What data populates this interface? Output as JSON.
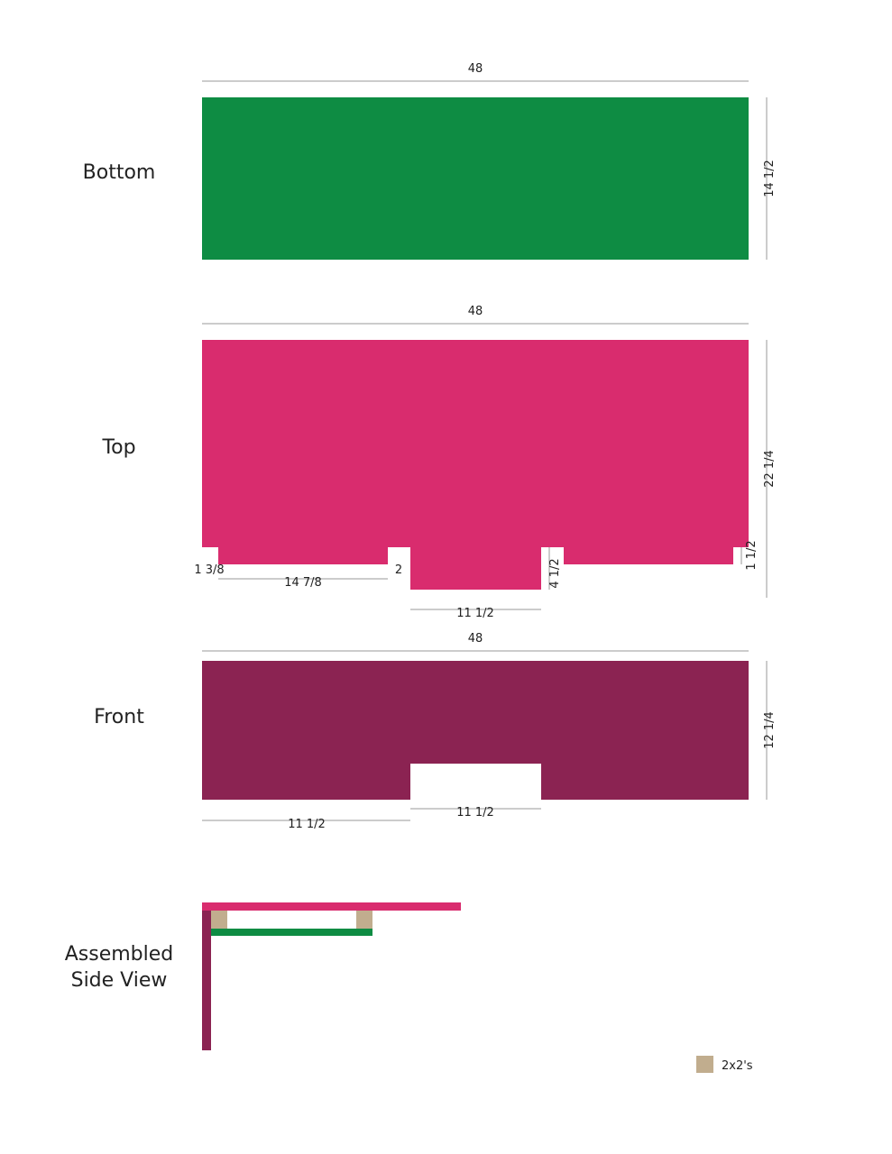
{
  "colors": {
    "bottom": "#0e8c43",
    "top": "#d92c6e",
    "front": "#8b2352",
    "two_by_two": "#c1ad8e"
  },
  "bottom": {
    "title": "Bottom",
    "width_label": "48",
    "height_label": "14 1/2"
  },
  "top": {
    "title": "Top",
    "width_label": "48",
    "height_label": "22 1/4",
    "notch_offset_label": "1 3/8",
    "tab_width_label": "14 7/8",
    "gap_label": "2",
    "center_tab_width_label": "11 1/2",
    "center_tab_depth_label": "4 1/2",
    "notch_depth_label": "1 1/2"
  },
  "front": {
    "title": "Front",
    "width_label": "48",
    "height_label": "12 1/4",
    "left_span_label": "11 1/2",
    "cutout_width_label": "11 1/2"
  },
  "assembled": {
    "title_line1": "Assembled",
    "title_line2": "Side View"
  },
  "legend": {
    "label": "2x2's",
    "icon": "square-swatch"
  }
}
